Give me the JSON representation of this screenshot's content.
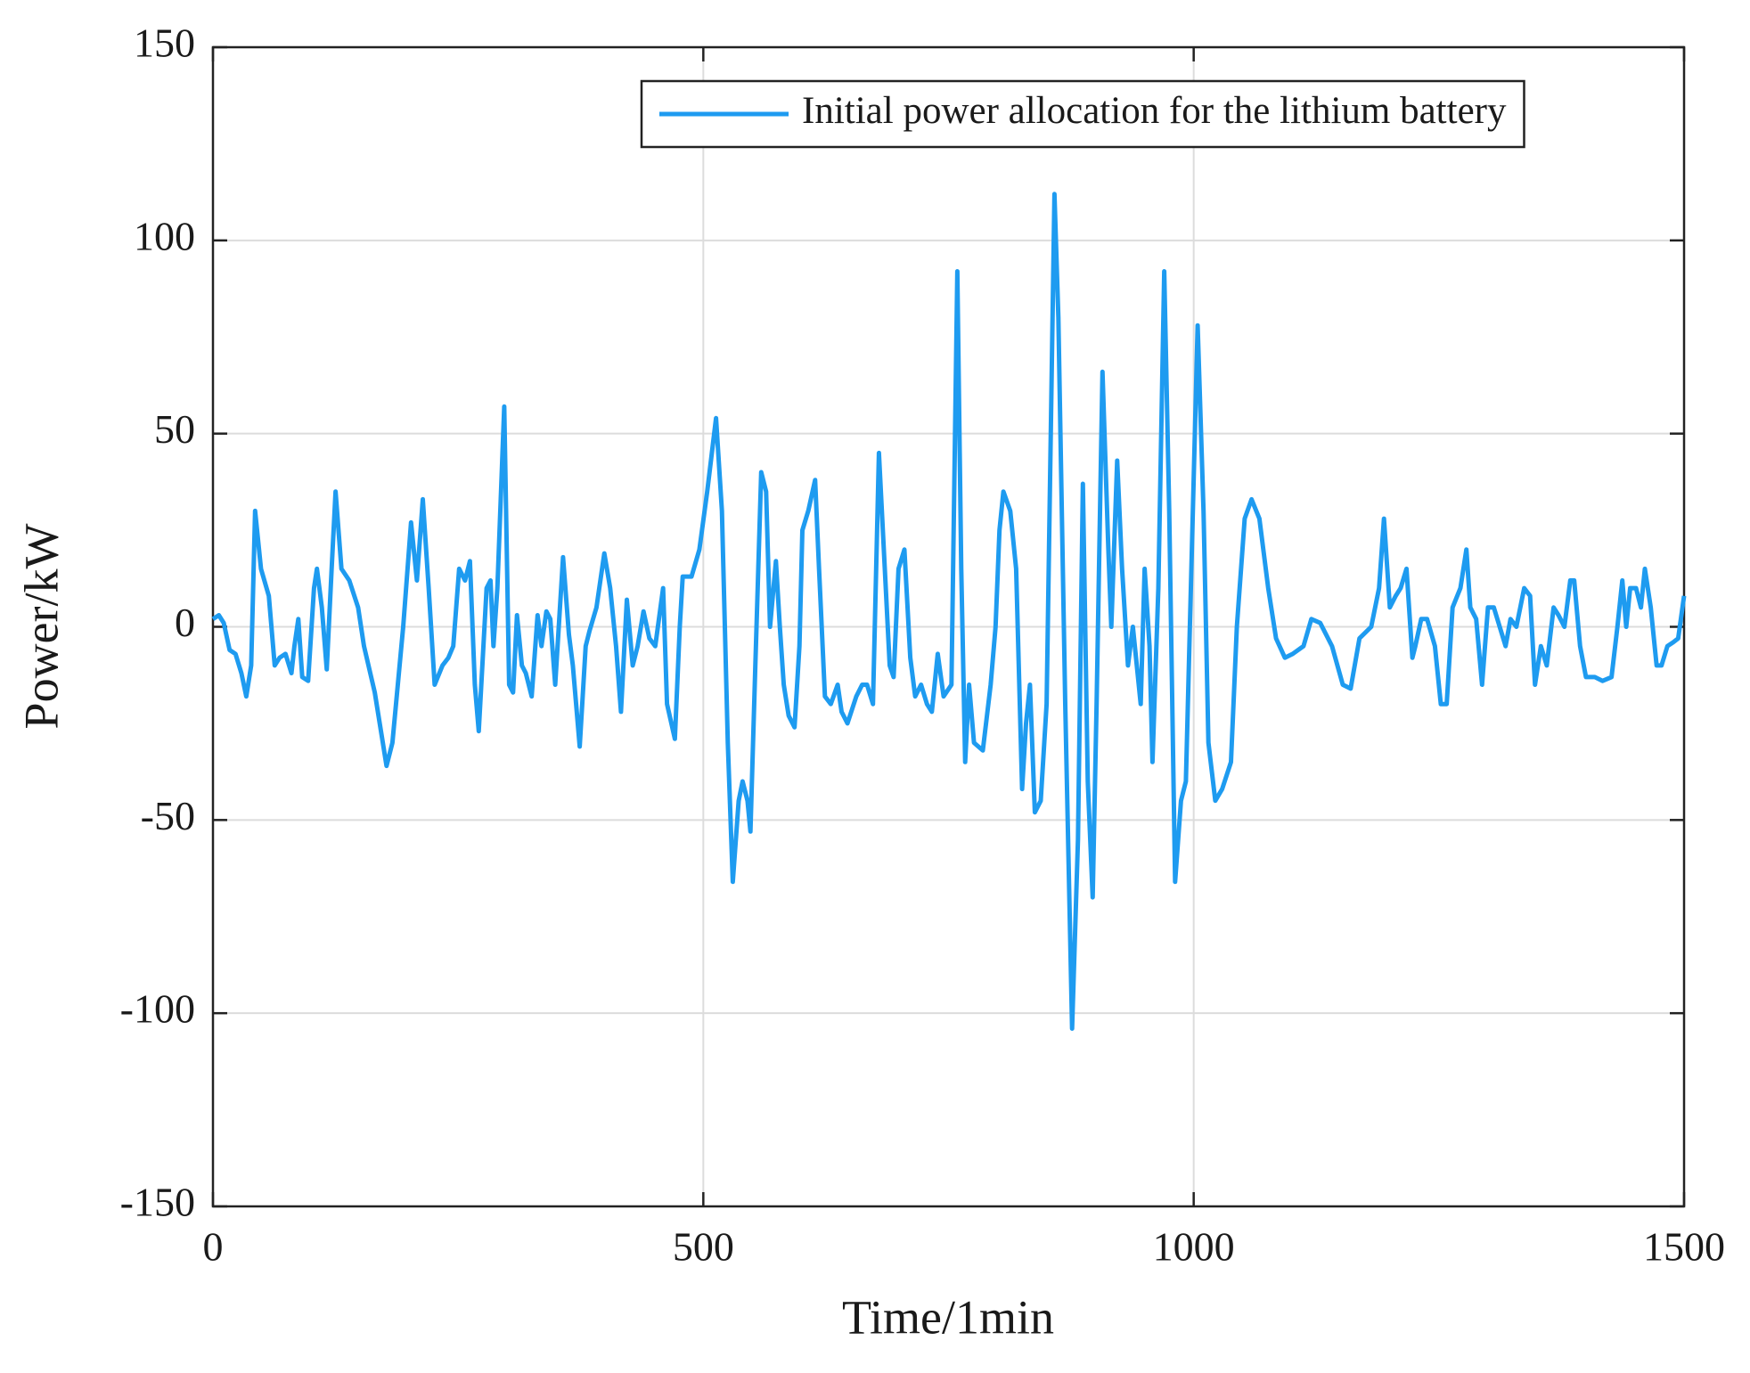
{
  "chart_data": {
    "type": "line",
    "xlabel": "Time/1min",
    "ylabel": "Power/kW",
    "x": [
      0,
      6,
      11,
      17,
      23,
      29,
      34,
      39,
      43,
      49,
      57,
      63,
      68,
      74,
      80,
      83,
      87,
      91,
      97,
      103,
      106,
      111,
      116,
      121,
      125,
      131,
      139,
      148,
      154,
      165,
      177,
      183,
      194,
      202,
      208,
      214,
      220,
      226,
      234,
      240,
      245,
      251,
      257,
      262,
      267,
      271,
      279,
      283,
      286,
      290,
      297,
      302,
      306,
      310,
      315,
      319,
      325,
      331,
      335,
      340,
      344,
      349,
      357,
      363,
      367,
      374,
      380,
      384,
      391,
      399,
      405,
      411,
      416,
      422,
      428,
      433,
      439,
      445,
      451,
      459,
      463,
      471,
      476,
      479,
      488,
      496,
      504,
      513,
      519,
      525,
      530,
      536,
      540,
      545,
      548,
      553,
      559,
      564,
      568,
      574,
      578,
      582,
      587,
      593,
      598,
      601,
      607,
      614,
      618,
      624,
      630,
      637,
      641,
      647,
      656,
      662,
      667,
      673,
      679,
      684,
      690,
      694,
      699,
      705,
      711,
      716,
      722,
      728,
      733,
      739,
      745,
      753,
      759,
      763,
      767,
      771,
      776,
      785,
      793,
      798,
      802,
      806,
      813,
      819,
      825,
      829,
      833,
      838,
      844,
      850,
      858,
      862,
      869,
      876,
      882,
      887,
      892,
      897,
      901,
      907,
      913,
      916,
      922,
      927,
      933,
      938,
      942,
      946,
      950,
      955,
      958,
      964,
      970,
      975,
      981,
      987,
      992,
      1004,
      1010,
      1015,
      1022,
      1029,
      1038,
      1044,
      1052,
      1059,
      1067,
      1076,
      1084,
      1093,
      1101,
      1112,
      1120,
      1129,
      1141,
      1152,
      1160,
      1169,
      1181,
      1189,
      1194,
      1200,
      1206,
      1211,
      1217,
      1223,
      1226,
      1232,
      1238,
      1246,
      1252,
      1258,
      1264,
      1272,
      1278,
      1282,
      1288,
      1294,
      1300,
      1306,
      1312,
      1318,
      1323,
      1329,
      1337,
      1343,
      1348,
      1354,
      1360,
      1367,
      1372,
      1378,
      1384,
      1388,
      1394,
      1400,
      1409,
      1417,
      1426,
      1432,
      1437,
      1441,
      1445,
      1451,
      1456,
      1460,
      1466,
      1472,
      1477,
      1483,
      1489,
      1494,
      1500
    ],
    "series": [
      {
        "name": "Initial power allocation for the lithium battery",
        "color": "#1e9bf0",
        "values": [
          2,
          3,
          1,
          -6,
          -7,
          -12,
          -18,
          -10,
          30,
          15,
          8,
          -10,
          -8,
          -7,
          -12,
          -5,
          2,
          -13,
          -14,
          10,
          15,
          5,
          -11,
          15,
          35,
          15,
          12,
          5,
          -5,
          -17,
          -36,
          -30,
          0,
          27,
          12,
          33,
          10,
          -15,
          -10,
          -8,
          -5,
          15,
          12,
          17,
          -15,
          -27,
          10,
          12,
          -5,
          10,
          57,
          -15,
          -17,
          3,
          -10,
          -12,
          -18,
          3,
          -5,
          4,
          2,
          -15,
          18,
          -2,
          -10,
          -31,
          -5,
          -1,
          5,
          19,
          10,
          -5,
          -22,
          7,
          -10,
          -5,
          4,
          -3,
          -5,
          10,
          -20,
          -29,
          0,
          13,
          13,
          20,
          35,
          54,
          30,
          -30,
          -66,
          -45,
          -40,
          -45,
          -53,
          -10,
          40,
          35,
          0,
          17,
          0,
          -15,
          -23,
          -26,
          -5,
          25,
          30,
          38,
          15,
          -18,
          -20,
          -15,
          -22,
          -25,
          -18,
          -15,
          -15,
          -20,
          45,
          20,
          -10,
          -13,
          15,
          20,
          -8,
          -18,
          -15,
          -20,
          -22,
          -7,
          -18,
          -15,
          92,
          15,
          -35,
          -15,
          -30,
          -32,
          -15,
          0,
          25,
          35,
          30,
          15,
          -42,
          -25,
          -15,
          -48,
          -45,
          -20,
          112,
          80,
          -20,
          -104,
          -55,
          37,
          -40,
          -70,
          -20,
          66,
          20,
          0,
          43,
          15,
          -10,
          0,
          -10,
          -20,
          15,
          -5,
          -35,
          10,
          92,
          30,
          -66,
          -45,
          -40,
          78,
          30,
          -30,
          -45,
          -42,
          -35,
          0,
          28,
          33,
          28,
          10,
          -3,
          -8,
          -7,
          -5,
          2,
          1,
          -5,
          -15,
          -16,
          -3,
          0,
          10,
          28,
          5,
          8,
          10,
          15,
          -8,
          -5,
          2,
          2,
          -5,
          -20,
          -20,
          5,
          10,
          20,
          5,
          2,
          -15,
          5,
          5,
          0,
          -5,
          2,
          0,
          10,
          8,
          -15,
          -5,
          -10,
          5,
          3,
          0,
          12,
          12,
          -5,
          -13,
          -13,
          -14,
          -13,
          0,
          12,
          0,
          10,
          10,
          5,
          15,
          5,
          -10,
          -10,
          -5,
          -4,
          -3,
          8
        ]
      }
    ],
    "xlim": [
      0,
      1500
    ],
    "ylim": [
      -150,
      150
    ],
    "xticks": [
      0,
      500,
      1000,
      1500
    ],
    "yticks": [
      -150,
      -100,
      -50,
      0,
      50,
      100,
      150
    ],
    "grid": true,
    "legend": "upper right"
  }
}
